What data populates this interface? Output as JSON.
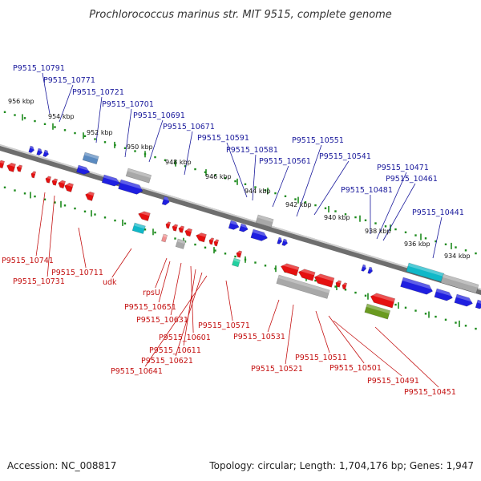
{
  "title": "Prochlorococcus marinus str. MIT 9515, complete genome",
  "footer": {
    "accession": "Accession: NC_008817",
    "summary": "Topology: circular; Length: 1,704,176 bp; Genes: 1,947"
  },
  "colors": {
    "top_strand_gene": "#1f1fe0",
    "bottom_strand_gene": "#e51010",
    "top_label": "#1a1a9c",
    "bottom_label": "#c41010",
    "rna": "#a8a8a8",
    "genome_line": "#888888",
    "tick": "#1c8a1c",
    "rna_pale": "#7ec8e0",
    "cyan_gene": "#10b8c8",
    "green_gene": "#6a9a20"
  },
  "scale_labels": [
    "956 kbp",
    "954 kbp",
    "952 kbp",
    "950 kbp",
    "948 kbp",
    "946 kbp",
    "944 kbp",
    "942 kbp",
    "940 kbp",
    "938 kbp",
    "936 kbp",
    "934 kbp"
  ],
  "top_gene_labels": [
    "P9515_10791",
    "P9515_10771",
    "P9515_10721",
    "P9515_10701",
    "P9515_10691",
    "P9515_10671",
    "P9515_10591",
    "P9515_10581",
    "P9515_10561",
    "P9515_10551",
    "P9515_10541",
    "P9515_10481",
    "P9515_10471",
    "P9515_10461",
    "P9515_10441"
  ],
  "bottom_gene_labels": [
    "P9515_10741",
    "P9515_10731",
    "P9515_10711",
    "udk",
    "rpsU",
    "P9515_10651",
    "P9515_10631",
    "P9515_10601",
    "P9515_10611",
    "P9515_10621",
    "P9515_10641",
    "P9515_10571",
    "P9515_10531",
    "P9515_10521",
    "P9515_10511",
    "P9515_10501",
    "P9515_10491",
    "P9515_10451"
  ]
}
